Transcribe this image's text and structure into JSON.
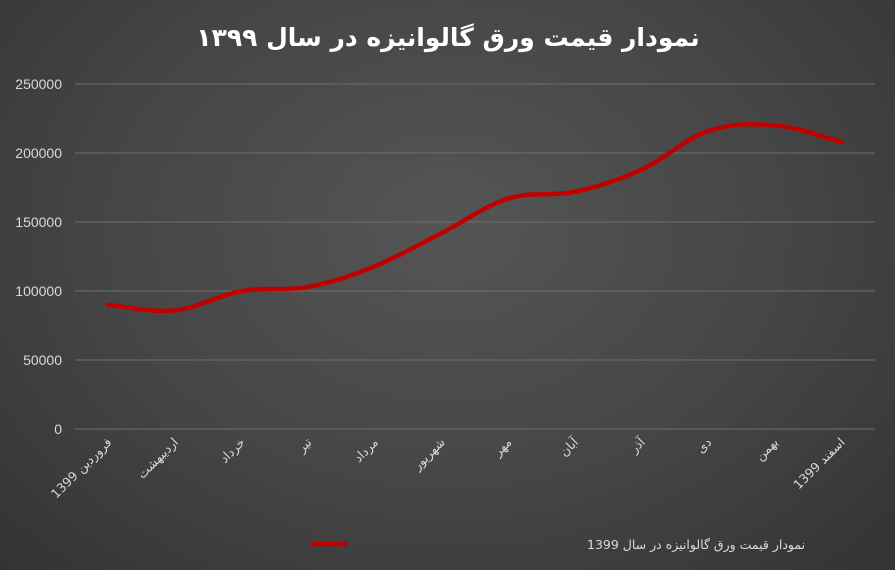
{
  "chart_data": {
    "type": "line",
    "title": "نمودار قیمت ورق گالوانیزه در سال ۱۳۹۹",
    "xlabel": "",
    "ylabel": "",
    "categories": [
      "فروردین 1399",
      "اردیبهشت",
      "خرداد",
      "تیر",
      "مرداد",
      "شهریور",
      "مهر",
      "آبان",
      "آذر",
      "دی",
      "بهمن",
      "اسفند 1399"
    ],
    "series": [
      {
        "name": "نمودار قیمت ورق گالوانیزه در سال 1399",
        "color": "#c00000",
        "values": [
          90000,
          86000,
          100000,
          103000,
          118000,
          142000,
          167000,
          172000,
          188000,
          216000,
          220000,
          208000
        ]
      }
    ],
    "ylim": [
      0,
      250000
    ],
    "yticks": [
      "0",
      "50000",
      "100000",
      "150000",
      "200000",
      "250000"
    ],
    "grid": true,
    "legend_position": "bottom",
    "colors": {
      "background": "#454545",
      "line": "#c00000",
      "grid": "#6e6e6e",
      "text": "#d9d9d9"
    }
  }
}
